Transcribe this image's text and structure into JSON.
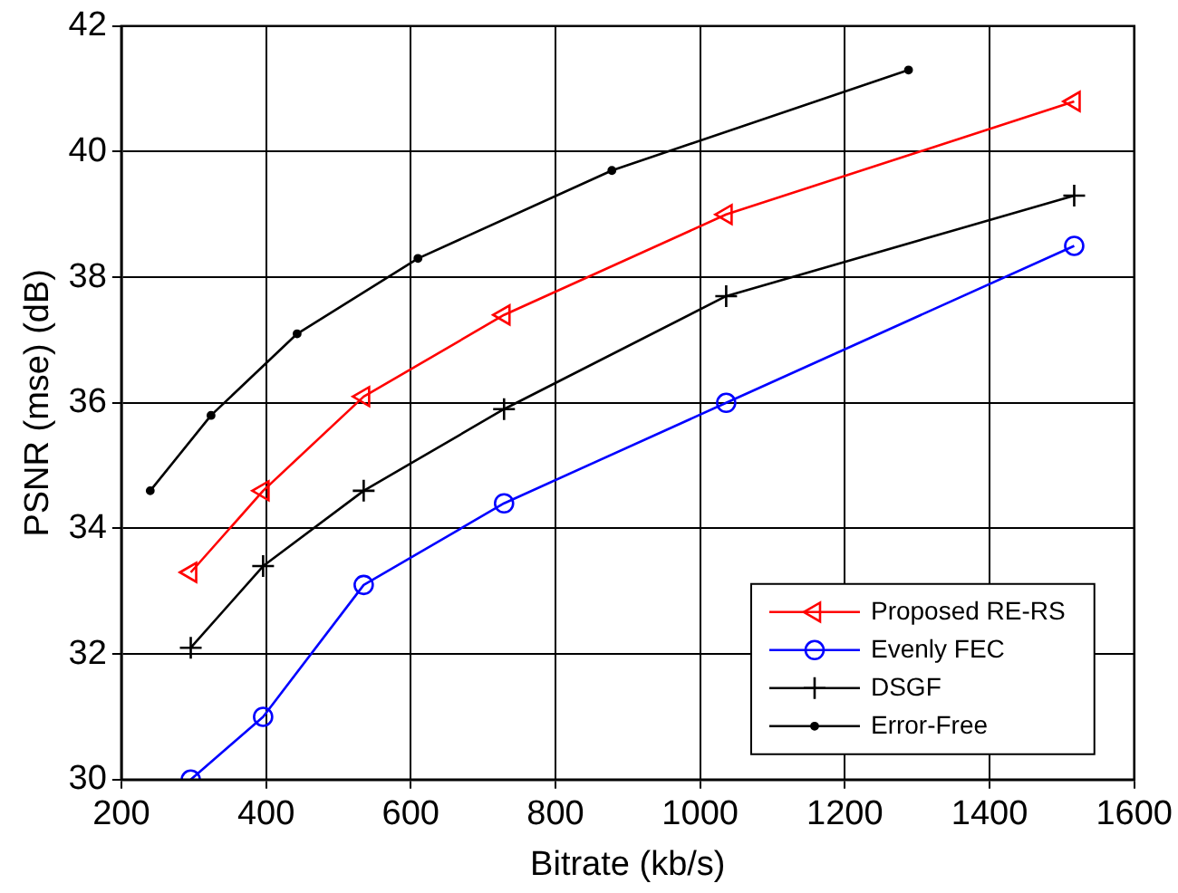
{
  "chart_data": {
    "type": "line",
    "xlabel": "Bitrate (kb/s)",
    "ylabel": "PSNR (mse) (dB)",
    "xlim": [
      200,
      1600
    ],
    "xticks": [
      200,
      400,
      600,
      800,
      1000,
      1200,
      1400,
      1600
    ],
    "ylim": [
      30,
      42
    ],
    "yticks": [
      30,
      32,
      34,
      36,
      38,
      40,
      42
    ],
    "grid": true,
    "legend": "bottom right",
    "line_style": "solid",
    "series": [
      {
        "name": "Proposed RE-RS",
        "color": "#ff0000",
        "marker": "triangle",
        "x": [
          296,
          396,
          535,
          729,
          1036,
          1517
        ],
        "values": [
          33.3,
          34.6,
          36.1,
          37.4,
          39.0,
          40.8
        ]
      },
      {
        "name": "Evenly FEC",
        "color": "#0000ff",
        "marker": "circle",
        "x": [
          296,
          396,
          535,
          729,
          1036,
          1517
        ],
        "values": [
          30.0,
          31.0,
          33.1,
          34.4,
          36.0,
          38.5
        ]
      },
      {
        "name": "DSGF",
        "color": "#000000",
        "marker": "cross",
        "x": [
          296,
          396,
          535,
          729,
          1036,
          1517
        ],
        "values": [
          32.1,
          33.4,
          34.6,
          35.9,
          37.7,
          39.3
        ]
      },
      {
        "name": "Error-Free",
        "color": "#000000",
        "marker": "dot",
        "x": [
          240,
          324,
          443,
          610,
          878,
          1288
        ],
        "values": [
          34.6,
          35.8,
          37.1,
          38.3,
          39.7,
          41.3
        ]
      }
    ]
  }
}
